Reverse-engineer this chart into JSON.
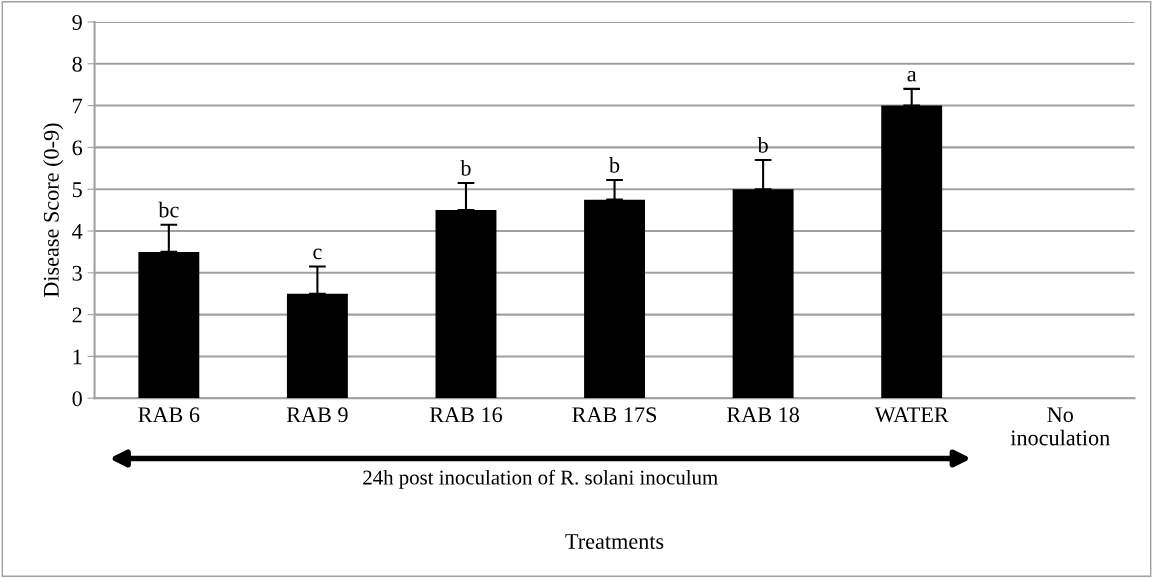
{
  "chart_data": {
    "type": "bar",
    "ylabel": "Disease Score (0-9)",
    "xlabel": "Treatments",
    "categories": [
      "RAB 6",
      "RAB 9",
      "RAB 16",
      "RAB 17S",
      "RAB 18",
      "WATER",
      "No\ninoculation"
    ],
    "values": [
      3.5,
      2.5,
      4.5,
      4.75,
      5.0,
      7.0,
      null
    ],
    "errors": [
      0.65,
      0.65,
      0.65,
      0.47,
      0.7,
      0.4,
      null
    ],
    "color": "#000000",
    "ylim": [
      0,
      9
    ],
    "yticks": [
      0,
      1,
      2,
      3,
      4,
      5,
      6,
      7,
      8,
      9
    ],
    "grid": "y",
    "annotations": [
      {
        "text": "bc",
        "x": "RAB 6",
        "y": 4.15
      },
      {
        "text": "c",
        "x": "RAB 9",
        "y": 3.15
      },
      {
        "text": "b",
        "x": "RAB 16",
        "y": 5.15
      },
      {
        "text": "b",
        "x": "RAB 17S",
        "y": 5.22
      },
      {
        "text": "b",
        "x": "RAB 18",
        "y": 5.7
      },
      {
        "text": "a",
        "x": "WATER",
        "y": 7.4
      },
      "24h post inoculation of R. solani inoculum"
    ]
  }
}
